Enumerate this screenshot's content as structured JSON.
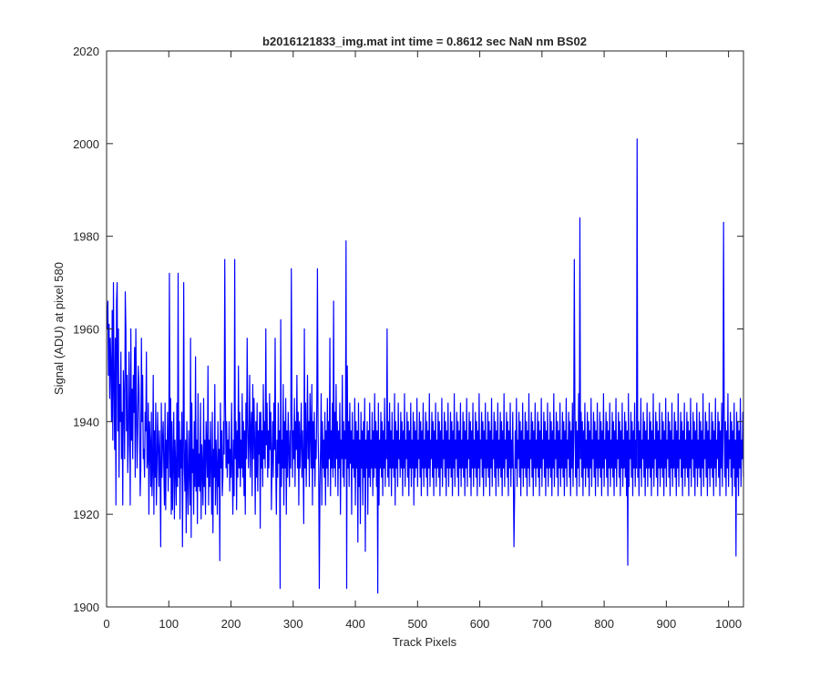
{
  "chart_data": {
    "type": "line",
    "title": "b2016121833_img.mat int time = 0.8612 sec  NaN nm BS02",
    "xlabel": "Track Pixels",
    "ylabel": "Signal (ADU) at pixel 580",
    "xlim": [
      0,
      1024
    ],
    "ylim": [
      1900,
      2020
    ],
    "xticks": [
      0,
      100,
      200,
      300,
      400,
      500,
      600,
      700,
      800,
      900,
      1000
    ],
    "yticks": [
      1900,
      1920,
      1940,
      1960,
      1980,
      2000,
      2020
    ],
    "grid": false,
    "series": [
      {
        "color": "#0000ff",
        "x_start": 1,
        "x_step": 1,
        "values": [
          1960,
          1966,
          1950,
          1961,
          1945,
          1958,
          1952,
          1940,
          1964,
          1936,
          1970,
          1948,
          1934,
          1958,
          1922,
          1966,
          1945,
          1938,
          1960,
          1928,
          1948,
          1940,
          1955,
          1932,
          1942,
          1922,
          1951,
          1945,
          1932,
          1968,
          1960,
          1938,
          1950,
          1929,
          1935,
          1955,
          1942,
          1922,
          1960,
          1936,
          1947,
          1932,
          1950,
          1942,
          1956,
          1928,
          1960,
          1944,
          1930,
          1938,
          1952,
          1948,
          1940,
          1924,
          1930,
          1958,
          1940,
          1950,
          1932,
          1934,
          1928,
          1942,
          1938,
          1955,
          1930,
          1932,
          1944,
          1920,
          1940,
          1935,
          1926,
          1942,
          1924,
          1930,
          1950,
          1920,
          1938,
          1928,
          1944,
          1922,
          1930,
          1942,
          1934,
          1926,
          1938,
          1930,
          1913,
          1944,
          1928,
          1936,
          1940,
          1930,
          1922,
          1944,
          1921,
          1936,
          1930,
          1942,
          1925,
          1934,
          1972,
          1928,
          1945,
          1920,
          1940,
          1921,
          1932,
          1942,
          1919,
          1936,
          1930,
          1922,
          1944,
          1926,
          1932,
          1928,
          1940,
          1919,
          1936,
          1930,
          1942,
          1913,
          1934,
          1970,
          1930,
          1925,
          1936,
          1916,
          1940,
          1928,
          1920,
          1938,
          1930,
          1922,
          1958,
          1915,
          1944,
          1929,
          1934,
          1920,
          1940,
          1926,
          1954,
          1925,
          1936,
          1918,
          1946,
          1926,
          1933,
          1925,
          1944,
          1919,
          1935,
          1930,
          1922,
          1945,
          1926,
          1936,
          1920,
          1940,
          1934,
          1928,
          1952,
          1922,
          1936,
          1926,
          1940,
          1930,
          1920,
          1942,
          1916,
          1934,
          1928,
          1948,
          1922,
          1936,
          1930,
          1920,
          1940,
          1926,
          1934,
          1910,
          1944,
          1930,
          1938,
          1924,
          1928,
          1940,
          1933,
          1975,
          1946,
          1930,
          1940,
          1928,
          1936,
          1931,
          1940,
          1925,
          1934,
          1928,
          1944,
          1930,
          1920,
          1936,
          1924,
          1945,
          1932,
          1940,
          1921,
          1938,
          1928,
          1952,
          1930,
          1942,
          1926,
          1936,
          1930,
          1946,
          1928,
          1940,
          1924,
          1938,
          1920,
          1944,
          1932,
          1958,
          1940,
          1930,
          1936,
          1950,
          1928,
          1938,
          1942,
          1924,
          1948,
          1932,
          1945,
          1936,
          1920,
          1940,
          1928,
          1944,
          1925,
          1938,
          1933,
          1942,
          1917,
          1942,
          1930,
          1938,
          1926,
          1948,
          1932,
          1940,
          1930,
          1960,
          1935,
          1944,
          1928,
          1938,
          1930,
          1946,
          1934,
          1942,
          1921,
          1932,
          1940,
          1928,
          1944,
          1934,
          1958,
          1930,
          1920,
          1936,
          1928,
          1944,
          1931,
          1938,
          1904,
          1962,
          1926,
          1936,
          1930,
          1948,
          1922,
          1940,
          1930,
          1945,
          1920,
          1938,
          1928,
          1942,
          1934,
          1926,
          1938,
          1930,
          1973,
          1942,
          1928,
          1938,
          1932,
          1945,
          1926,
          1940,
          1934,
          1950,
          1930,
          1942,
          1922,
          1940,
          1930,
          1936,
          1944,
          1928,
          1938,
          1931,
          1918,
          1960,
          1930,
          1944,
          1926,
          1936,
          1950,
          1932,
          1940,
          1926,
          1946,
          1938,
          1930,
          1948,
          1922,
          1940,
          1930,
          1942,
          1926,
          1936,
          1932,
          1944,
          1973,
          1938,
          1930,
          1942,
          1926,
          1934,
          1946,
          1922,
          1940,
          1930,
          1936,
          1928,
          1942,
          1922,
          1938,
          1930,
          1945,
          1926,
          1940,
          1932,
          1958,
          1924,
          1938,
          1930,
          1944,
          1928,
          1966,
          1930,
          1942,
          1926,
          1948,
          1932,
          1940,
          1924,
          1938,
          1930,
          1944,
          1920,
          1936,
          1932,
          1950,
          1928,
          1940,
          1926,
          1938,
          1932,
          1946,
          1904,
          1952,
          1930,
          1940,
          1926,
          1944,
          1931,
          1938,
          1920,
          1942,
          1930,
          1936,
          1928,
          1945,
          1922,
          1940,
          1930,
          1938,
          1914,
          1944,
          1926,
          1936,
          1918,
          1942,
          1930,
          1938,
          1922,
          1940,
          1928,
          1945,
          1912,
          1936,
          1930,
          1940,
          1920,
          1938,
          1928,
          1944,
          1926,
          1936,
          1930,
          1942,
          1924,
          1938,
          1928,
          1946,
          1930,
          1940,
          1926,
          1938,
          1932,
          1944,
          1922,
          1936,
          1930,
          1942,
          1928,
          1940,
          1924,
          1938,
          1930,
          1945,
          1926,
          1936,
          1932,
          1960,
          1928,
          1940,
          1926,
          1944,
          1930,
          1938,
          1924,
          1942,
          1930,
          1936,
          1928,
          1946,
          1922,
          1940,
          1930,
          1938,
          1926,
          1944,
          1932,
          1936,
          1928,
          1942,
          1930,
          1940,
          1924,
          1938,
          1930,
          1946,
          1926,
          1936,
          1932,
          1942,
          1928,
          1940,
          1924,
          1938,
          1930,
          1944,
          1926,
          1936,
          1930,
          1942,
          1922,
          1940,
          1928,
          1938,
          1930,
          1945,
          1926,
          1936,
          1932,
          1942,
          1928,
          1940,
          1924,
          1938,
          1930,
          1944,
          1926,
          1936,
          1930,
          1942,
          1928,
          1940,
          1924,
          1938,
          1930,
          1946,
          1926,
          1936,
          1932,
          1942,
          1928,
          1940,
          1924,
          1938,
          1930,
          1944,
          1926,
          1936,
          1930,
          1942,
          1928,
          1940,
          1924,
          1938,
          1930,
          1945,
          1926,
          1936,
          1932,
          1942,
          1928,
          1940,
          1924,
          1938,
          1930,
          1944,
          1926,
          1936,
          1930,
          1942,
          1928,
          1940,
          1924,
          1938,
          1930,
          1946,
          1926,
          1936,
          1932,
          1942,
          1928,
          1940,
          1924,
          1938,
          1930,
          1944,
          1926,
          1936,
          1930,
          1942,
          1928,
          1940,
          1924,
          1938,
          1930,
          1945,
          1926,
          1936,
          1932,
          1942,
          1928,
          1940,
          1924,
          1938,
          1930,
          1944,
          1926,
          1936,
          1930,
          1942,
          1928,
          1940,
          1924,
          1938,
          1930,
          1946,
          1926,
          1936,
          1932,
          1942,
          1928,
          1940,
          1924,
          1938,
          1930,
          1944,
          1926,
          1936,
          1930,
          1942,
          1928,
          1940,
          1924,
          1938,
          1930,
          1945,
          1926,
          1936,
          1932,
          1942,
          1928,
          1940,
          1924,
          1938,
          1930,
          1944,
          1926,
          1936,
          1930,
          1942,
          1928,
          1940,
          1924,
          1938,
          1930,
          1946,
          1926,
          1936,
          1932,
          1942,
          1928,
          1940,
          1924,
          1938,
          1930,
          1944,
          1926,
          1936,
          1930,
          1942,
          1928,
          1940,
          1924,
          1938,
          1930,
          1945,
          1926,
          1936,
          1932,
          1942,
          1928,
          1940,
          1924,
          1938,
          1930,
          1944,
          1926,
          1936,
          1930,
          1942,
          1928,
          1940,
          1924,
          1938,
          1930,
          1946,
          1926,
          1936,
          1932,
          1942,
          1928,
          1940,
          1924,
          1938,
          1930,
          1944,
          1926,
          1936,
          1930,
          1942,
          1928,
          1940,
          1924,
          1938,
          1930,
          1945,
          1926,
          1936,
          1932,
          1942,
          1928,
          1940,
          1924,
          1938,
          1930,
          1944,
          1926,
          1936,
          1930,
          1942,
          1928,
          1940,
          1924,
          1938,
          1930,
          1946,
          1926,
          1936,
          1932,
          1942,
          1928,
          1940,
          1924,
          1938,
          1930,
          1944,
          1926,
          1936,
          1930,
          1942,
          1928,
          1940,
          1924,
          1938,
          1930,
          1945,
          1926,
          1936,
          1932,
          1942,
          1928,
          1940,
          1924,
          1938,
          1930,
          1944,
          1926,
          1936,
          1930,
          1942,
          1928,
          1940,
          1924,
          1938,
          1930,
          1946,
          1926,
          1936,
          1932,
          1942,
          1928,
          1940,
          1924,
          1938,
          1930,
          1944,
          1926,
          1936,
          1930,
          1942,
          1928,
          1940,
          1924,
          1938,
          1930,
          1945,
          1926,
          1936,
          1932,
          1942,
          1928,
          1940,
          1924,
          1938,
          1930,
          1944,
          1926,
          1936,
          1930,
          1942,
          1928,
          1940,
          1924,
          1938,
          1930,
          1946,
          1926,
          1936,
          1932,
          1942,
          1928,
          1940,
          1924,
          1938,
          1930,
          1944,
          1926,
          1936,
          1930,
          1942,
          1928,
          1940,
          1924,
          1938,
          1930,
          1945,
          1926,
          1936,
          1932,
          1942,
          1928,
          1940,
          1924,
          1938,
          1930,
          1944,
          1926,
          1936,
          1930,
          1942,
          1928,
          1940,
          1924,
          1938,
          1930,
          1946,
          1926,
          1936,
          1932,
          1942,
          1928,
          1940,
          1924,
          1938,
          1930,
          1944,
          1926,
          1936,
          1930,
          1942,
          1928,
          1940,
          1924,
          1938,
          1930,
          1945,
          1926,
          1936,
          1932,
          1942,
          1928,
          1940,
          1924,
          1938,
          1930,
          1944,
          1926,
          1936,
          1930,
          1942,
          1928,
          1940,
          1924,
          1938,
          1930,
          1946,
          1926,
          1936,
          1932,
          1942,
          1928,
          1940,
          1924,
          1938,
          1930,
          1944,
          1926,
          1936,
          1930,
          1942,
          1928,
          1940,
          1924,
          1938,
          1930,
          1945,
          1926,
          1936,
          1932,
          1942,
          1928,
          1940,
          1924,
          1938,
          1930,
          1944,
          1926,
          1936,
          1930,
          1942,
          1928,
          1940,
          1924,
          1938,
          1930,
          1946,
          1926,
          1936,
          1932,
          1942,
          1928,
          1940,
          1924,
          1938,
          1930,
          1944,
          1926,
          1936,
          1930,
          1942,
          1928,
          1940,
          1924,
          1938,
          1930,
          1945,
          1926,
          1936,
          1932,
          1942,
          1928,
          1940,
          1924,
          1938,
          1930,
          1944,
          1926,
          1936,
          1930,
          1942,
          1928,
          1940,
          1924,
          1938,
          1930,
          1946,
          1926,
          1936,
          1932,
          1942,
          1928,
          1940,
          1924,
          1938,
          1930,
          1944,
          1926,
          1936,
          1930,
          1942,
          1928,
          1940,
          1924,
          1938,
          1930,
          1945,
          1926,
          1936,
          1932,
          1942,
          1928,
          1940,
          1924,
          1938,
          1930,
          1944,
          1926,
          1936,
          1930,
          1942,
          1928,
          1940,
          1924,
          1938,
          1930,
          1946,
          1926,
          1936,
          1932,
          1942,
          1928,
          1940,
          1924,
          1938,
          1930,
          1944,
          1926,
          1936,
          1930,
          1942,
          1928,
          1940,
          1924,
          1938,
          1930,
          1945,
          1926,
          1936,
          1932,
          1942,
          1928,
          1940,
          1924,
          1938,
          1930,
          1944,
          1926,
          1936,
          1930,
          1942,
          1928,
          1940,
          1924,
          1938,
          1930,
          1946,
          1926,
          1936,
          1932,
          1942,
          1928,
          1940,
          1924,
          1938,
          1930,
          1944,
          1926,
          1936,
          1930,
          1942,
          1928,
          1940
        ]
      }
    ],
    "annotated_points": [
      {
        "x": 17,
        "y": 1970
      },
      {
        "x": 115,
        "y": 1972
      },
      {
        "x": 206,
        "y": 1975
      },
      {
        "x": 342,
        "y": 1904
      },
      {
        "x": 385,
        "y": 1979
      },
      {
        "x": 436,
        "y": 1903
      },
      {
        "x": 655,
        "y": 1913
      },
      {
        "x": 752,
        "y": 1975
      },
      {
        "x": 761,
        "y": 1984
      },
      {
        "x": 838,
        "y": 1909
      },
      {
        "x": 853,
        "y": 2001
      },
      {
        "x": 992,
        "y": 1983
      },
      {
        "x": 1012,
        "y": 1911
      }
    ]
  }
}
